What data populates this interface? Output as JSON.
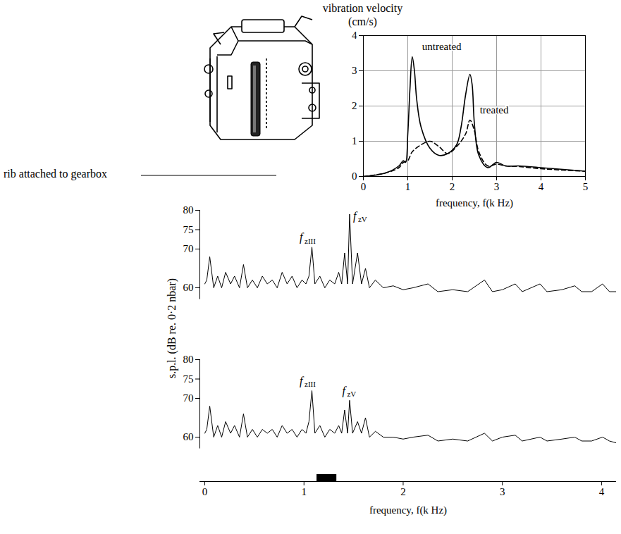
{
  "illustration": {
    "label": "rib attached to gearbox"
  },
  "chart_data": [
    {
      "type": "line",
      "ylabel": "vibration velocity (cm/s)",
      "xlabel": "frequency, f(k Hz)",
      "xlim": [
        0,
        5
      ],
      "xticks": [
        0,
        1,
        2,
        3,
        4,
        5
      ],
      "ylim": [
        0,
        4
      ],
      "yticks": [
        0,
        1,
        2,
        3,
        4
      ],
      "grid": true,
      "series": [
        {
          "name": "untreated",
          "color": "#000000",
          "line_style": "solid",
          "x": [
            0,
            0.5,
            0.8,
            0.9,
            0.95,
            1.0,
            1.05,
            1.1,
            1.15,
            1.2,
            1.3,
            1.5,
            1.7,
            1.9,
            2.1,
            2.2,
            2.3,
            2.4,
            2.45,
            2.5,
            2.6,
            2.8,
            3.0,
            3.2,
            3.5,
            4.0,
            4.5,
            5.0
          ],
          "values": [
            0,
            0.1,
            0.3,
            0.45,
            0.4,
            1.2,
            2.5,
            3.4,
            3.0,
            2.2,
            1.4,
            0.8,
            0.6,
            0.65,
            0.9,
            1.4,
            2.3,
            2.9,
            2.6,
            1.5,
            0.6,
            0.25,
            0.4,
            0.3,
            0.3,
            0.25,
            0.2,
            0.15
          ]
        },
        {
          "name": "treated",
          "color": "#000000",
          "line_style": "dashed",
          "x": [
            0,
            0.5,
            0.8,
            0.9,
            1.0,
            1.1,
            1.3,
            1.5,
            1.7,
            1.9,
            2.1,
            2.3,
            2.4,
            2.5,
            2.6,
            2.8,
            3.0,
            3.2,
            3.5,
            4.0,
            4.5,
            5.0
          ],
          "values": [
            0,
            0.1,
            0.25,
            0.4,
            0.45,
            0.7,
            0.9,
            1.0,
            0.85,
            0.65,
            0.85,
            1.2,
            1.6,
            1.3,
            0.7,
            0.3,
            0.35,
            0.3,
            0.28,
            0.22,
            0.18,
            0.15
          ]
        }
      ]
    },
    {
      "type": "line",
      "color": "#000000",
      "tick_labels": "y",
      "xlim": [
        -0.05,
        4.15
      ],
      "xticks": [
        0,
        1,
        2,
        3,
        4
      ],
      "ylim": [
        57,
        80
      ],
      "yticks": [
        60,
        70,
        75,
        80
      ],
      "x": [
        0.0,
        0.02,
        0.05,
        0.09,
        0.13,
        0.17,
        0.21,
        0.26,
        0.3,
        0.35,
        0.39,
        0.43,
        0.48,
        0.53,
        0.58,
        0.63,
        0.68,
        0.73,
        0.78,
        0.83,
        0.88,
        0.93,
        0.98,
        1.02,
        1.05,
        1.08,
        1.11,
        1.16,
        1.21,
        1.26,
        1.31,
        1.35,
        1.38,
        1.41,
        1.44,
        1.46,
        1.49,
        1.54,
        1.58,
        1.62,
        1.66,
        1.72,
        1.8,
        1.9,
        2.0,
        2.1,
        2.25,
        2.35,
        2.5,
        2.65,
        2.82,
        2.9,
        3.0,
        3.13,
        3.2,
        3.38,
        3.45,
        3.6,
        3.73,
        3.8,
        3.9,
        4.01,
        4.08,
        4.15
      ],
      "values": [
        61,
        62,
        68,
        60,
        63,
        60,
        64,
        61,
        63,
        60,
        66,
        60,
        62,
        60,
        63,
        61,
        62,
        60,
        64,
        61,
        63,
        60,
        62,
        61,
        63,
        70.5,
        61,
        63,
        60,
        62,
        61,
        64,
        61,
        69,
        61,
        79,
        61,
        69,
        61,
        65,
        60,
        62,
        60,
        60.5,
        59.5,
        60,
        61,
        59,
        59.5,
        59,
        62,
        59,
        59.5,
        61,
        59,
        61,
        59,
        59.5,
        60.5,
        59,
        59,
        61,
        59,
        59
      ],
      "annotations": [
        {
          "text": "f",
          "subscript": "zIII",
          "x": 1.08,
          "y": 73
        },
        {
          "text": "f",
          "subscript": "zV",
          "x": 1.46,
          "y": 78.5
        }
      ]
    },
    {
      "type": "line",
      "color": "#000000",
      "ylabel": "s.p.l. (dB re. 0·2 nbar)",
      "xlabel": "frequency, f(k Hz)",
      "xlim": [
        -0.05,
        4.15
      ],
      "xticks": [
        0,
        1,
        2,
        3,
        4
      ],
      "ylim": [
        57,
        80
      ],
      "yticks": [
        60,
        70,
        75,
        80
      ],
      "band": [
        1.13,
        1.33
      ],
      "x": [
        0.0,
        0.02,
        0.05,
        0.09,
        0.13,
        0.17,
        0.21,
        0.26,
        0.3,
        0.35,
        0.39,
        0.43,
        0.48,
        0.53,
        0.58,
        0.63,
        0.68,
        0.73,
        0.78,
        0.83,
        0.88,
        0.93,
        0.98,
        1.02,
        1.05,
        1.08,
        1.11,
        1.16,
        1.21,
        1.26,
        1.31,
        1.35,
        1.38,
        1.41,
        1.44,
        1.46,
        1.49,
        1.54,
        1.58,
        1.62,
        1.66,
        1.72,
        1.8,
        1.9,
        2.0,
        2.1,
        2.25,
        2.35,
        2.5,
        2.65,
        2.82,
        2.9,
        3.0,
        3.13,
        3.2,
        3.38,
        3.45,
        3.6,
        3.73,
        3.8,
        3.9,
        4.01,
        4.08,
        4.15
      ],
      "values": [
        61,
        62,
        68,
        60,
        63,
        60,
        64,
        61,
        63,
        60,
        66,
        60,
        62,
        60,
        62,
        61,
        62,
        60,
        63,
        61,
        62,
        60,
        62,
        61,
        64,
        72,
        61,
        63,
        60,
        62,
        61,
        63,
        61,
        67,
        61,
        69.5,
        61,
        64,
        61,
        65,
        60,
        61.5,
        60,
        60,
        59.5,
        60,
        60.5,
        59,
        59.5,
        59,
        61,
        59,
        60,
        60.5,
        59,
        60,
        59,
        59.5,
        60,
        59,
        59,
        60,
        59,
        58.5
      ],
      "annotations": [
        {
          "text": "f",
          "subscript": "zIII",
          "x": 1.08,
          "y": 74.5
        },
        {
          "text": "f",
          "subscript": "zV",
          "x": 1.46,
          "y": 72
        }
      ]
    }
  ]
}
